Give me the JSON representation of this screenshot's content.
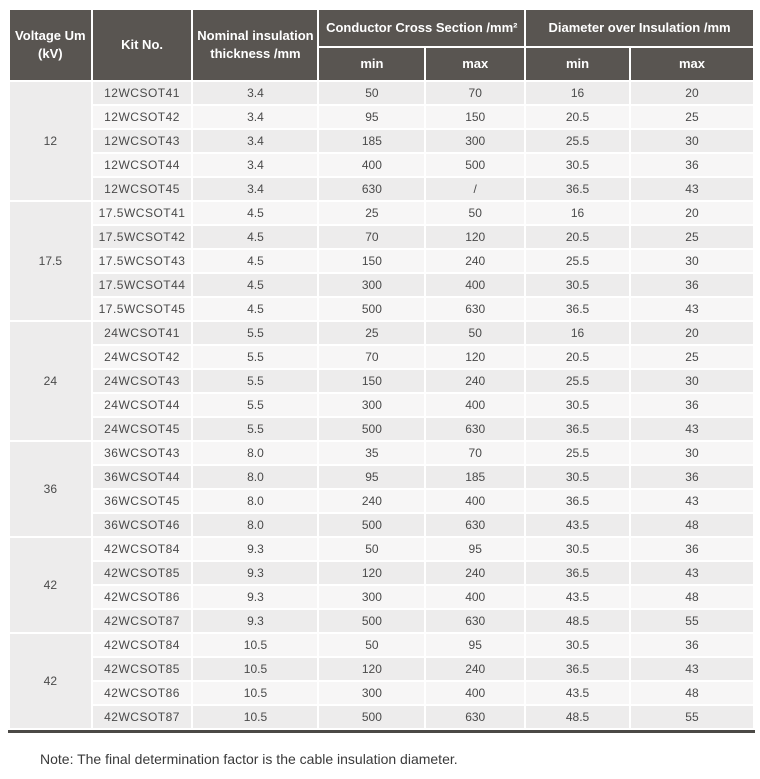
{
  "table": {
    "header": {
      "voltage": "Voltage Um (kV)",
      "kit_no": "Kit No.",
      "thickness": "Nominal insulation thickness /mm",
      "conductor_cross_section": "Conductor Cross Section /mm²",
      "diameter_over_insulation": "Diameter over Insulation /mm",
      "ccs_min": "min",
      "ccs_max": "max",
      "dia_min": "min",
      "dia_max": "max"
    },
    "groups": [
      {
        "voltage": "12",
        "rows": [
          {
            "kit": "12WCSOT41",
            "thickness": "3.4",
            "ccs_min": "50",
            "ccs_max": "70",
            "dia_min": "16",
            "dia_max": "20"
          },
          {
            "kit": "12WCSOT42",
            "thickness": "3.4",
            "ccs_min": "95",
            "ccs_max": "150",
            "dia_min": "20.5",
            "dia_max": "25"
          },
          {
            "kit": "12WCSOT43",
            "thickness": "3.4",
            "ccs_min": "185",
            "ccs_max": "300",
            "dia_min": "25.5",
            "dia_max": "30"
          },
          {
            "kit": "12WCSOT44",
            "thickness": "3.4",
            "ccs_min": "400",
            "ccs_max": "500",
            "dia_min": "30.5",
            "dia_max": "36"
          },
          {
            "kit": "12WCSOT45",
            "thickness": "3.4",
            "ccs_min": "630",
            "ccs_max": "/",
            "dia_min": "36.5",
            "dia_max": "43"
          }
        ]
      },
      {
        "voltage": "17.5",
        "rows": [
          {
            "kit": "17.5WCSOT41",
            "thickness": "4.5",
            "ccs_min": "25",
            "ccs_max": "50",
            "dia_min": "16",
            "dia_max": "20"
          },
          {
            "kit": "17.5WCSOT42",
            "thickness": "4.5",
            "ccs_min": "70",
            "ccs_max": "120",
            "dia_min": "20.5",
            "dia_max": "25"
          },
          {
            "kit": "17.5WCSOT43",
            "thickness": "4.5",
            "ccs_min": "150",
            "ccs_max": "240",
            "dia_min": "25.5",
            "dia_max": "30"
          },
          {
            "kit": "17.5WCSOT44",
            "thickness": "4.5",
            "ccs_min": "300",
            "ccs_max": "400",
            "dia_min": "30.5",
            "dia_max": "36"
          },
          {
            "kit": "17.5WCSOT45",
            "thickness": "4.5",
            "ccs_min": "500",
            "ccs_max": "630",
            "dia_min": "36.5",
            "dia_max": "43"
          }
        ]
      },
      {
        "voltage": "24",
        "rows": [
          {
            "kit": "24WCSOT41",
            "thickness": "5.5",
            "ccs_min": "25",
            "ccs_max": "50",
            "dia_min": "16",
            "dia_max": "20"
          },
          {
            "kit": "24WCSOT42",
            "thickness": "5.5",
            "ccs_min": "70",
            "ccs_max": "120",
            "dia_min": "20.5",
            "dia_max": "25"
          },
          {
            "kit": "24WCSOT43",
            "thickness": "5.5",
            "ccs_min": "150",
            "ccs_max": "240",
            "dia_min": "25.5",
            "dia_max": "30"
          },
          {
            "kit": "24WCSOT44",
            "thickness": "5.5",
            "ccs_min": "300",
            "ccs_max": "400",
            "dia_min": "30.5",
            "dia_max": "36"
          },
          {
            "kit": "24WCSOT45",
            "thickness": "5.5",
            "ccs_min": "500",
            "ccs_max": "630",
            "dia_min": "36.5",
            "dia_max": "43"
          }
        ]
      },
      {
        "voltage": "36",
        "rows": [
          {
            "kit": "36WCSOT43",
            "thickness": "8.0",
            "ccs_min": "35",
            "ccs_max": "70",
            "dia_min": "25.5",
            "dia_max": "30"
          },
          {
            "kit": "36WCSOT44",
            "thickness": "8.0",
            "ccs_min": "95",
            "ccs_max": "185",
            "dia_min": "30.5",
            "dia_max": "36"
          },
          {
            "kit": "36WCSOT45",
            "thickness": "8.0",
            "ccs_min": "240",
            "ccs_max": "400",
            "dia_min": "36.5",
            "dia_max": "43"
          },
          {
            "kit": "36WCSOT46",
            "thickness": "8.0",
            "ccs_min": "500",
            "ccs_max": "630",
            "dia_min": "43.5",
            "dia_max": "48"
          }
        ]
      },
      {
        "voltage": "42",
        "rows": [
          {
            "kit": "42WCSOT84",
            "thickness": "9.3",
            "ccs_min": "50",
            "ccs_max": "95",
            "dia_min": "30.5",
            "dia_max": "36"
          },
          {
            "kit": "42WCSOT85",
            "thickness": "9.3",
            "ccs_min": "120",
            "ccs_max": "240",
            "dia_min": "36.5",
            "dia_max": "43"
          },
          {
            "kit": "42WCSOT86",
            "thickness": "9.3",
            "ccs_min": "300",
            "ccs_max": "400",
            "dia_min": "43.5",
            "dia_max": "48"
          },
          {
            "kit": "42WCSOT87",
            "thickness": "9.3",
            "ccs_min": "500",
            "ccs_max": "630",
            "dia_min": "48.5",
            "dia_max": "55"
          }
        ]
      },
      {
        "voltage": "42",
        "rows": [
          {
            "kit": "42WCSOT84",
            "thickness": "10.5",
            "ccs_min": "50",
            "ccs_max": "95",
            "dia_min": "30.5",
            "dia_max": "36"
          },
          {
            "kit": "42WCSOT85",
            "thickness": "10.5",
            "ccs_min": "120",
            "ccs_max": "240",
            "dia_min": "36.5",
            "dia_max": "43"
          },
          {
            "kit": "42WCSOT86",
            "thickness": "10.5",
            "ccs_min": "300",
            "ccs_max": "400",
            "dia_min": "43.5",
            "dia_max": "48"
          },
          {
            "kit": "42WCSOT87",
            "thickness": "10.5",
            "ccs_min": "500",
            "ccs_max": "630",
            "dia_min": "48.5",
            "dia_max": "55"
          }
        ]
      }
    ]
  },
  "note": "Note: The final determination factor is the cable insulation diameter.",
  "colors": {
    "header_bg": "#595551",
    "header_text": "#ffffff",
    "row_shaded": "#edecec",
    "row_plain": "#f7f6f6",
    "cell_text": "#4a4a4a",
    "bottom_border": "#4b4946"
  }
}
